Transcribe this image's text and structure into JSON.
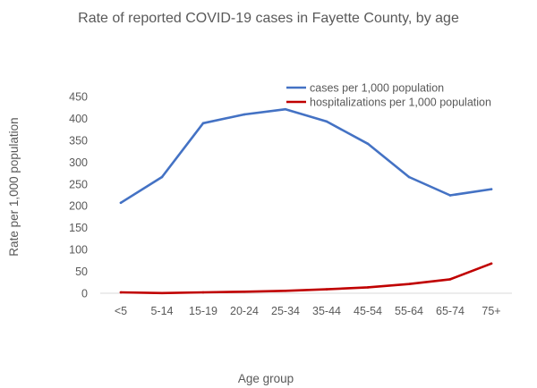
{
  "chart_data": {
    "type": "line",
    "title": "Rate of reported COVID-19 cases in Fayette County, by age",
    "xlabel": "Age group",
    "ylabel": "Rate per 1,000 population",
    "categories": [
      "<5",
      "5-14",
      "15-19",
      "20-24",
      "25-34",
      "35-44",
      "45-54",
      "55-64",
      "65-74",
      "75+"
    ],
    "ylim": [
      0,
      450
    ],
    "yticks": [
      0,
      50,
      100,
      150,
      200,
      250,
      300,
      350,
      400,
      450
    ],
    "grid": false,
    "legend_position": "top-right",
    "series": [
      {
        "name": "cases per 1,000 population",
        "color": "#4472C4",
        "values": [
          207,
          266,
          389,
          409,
          421,
          393,
          342,
          266,
          224,
          238
        ]
      },
      {
        "name": "hospitalizations per 1,000 population",
        "color": "#C00000",
        "values": [
          2,
          0.5,
          2,
          3.5,
          5.5,
          9,
          13.5,
          21,
          32,
          68
        ]
      }
    ]
  }
}
